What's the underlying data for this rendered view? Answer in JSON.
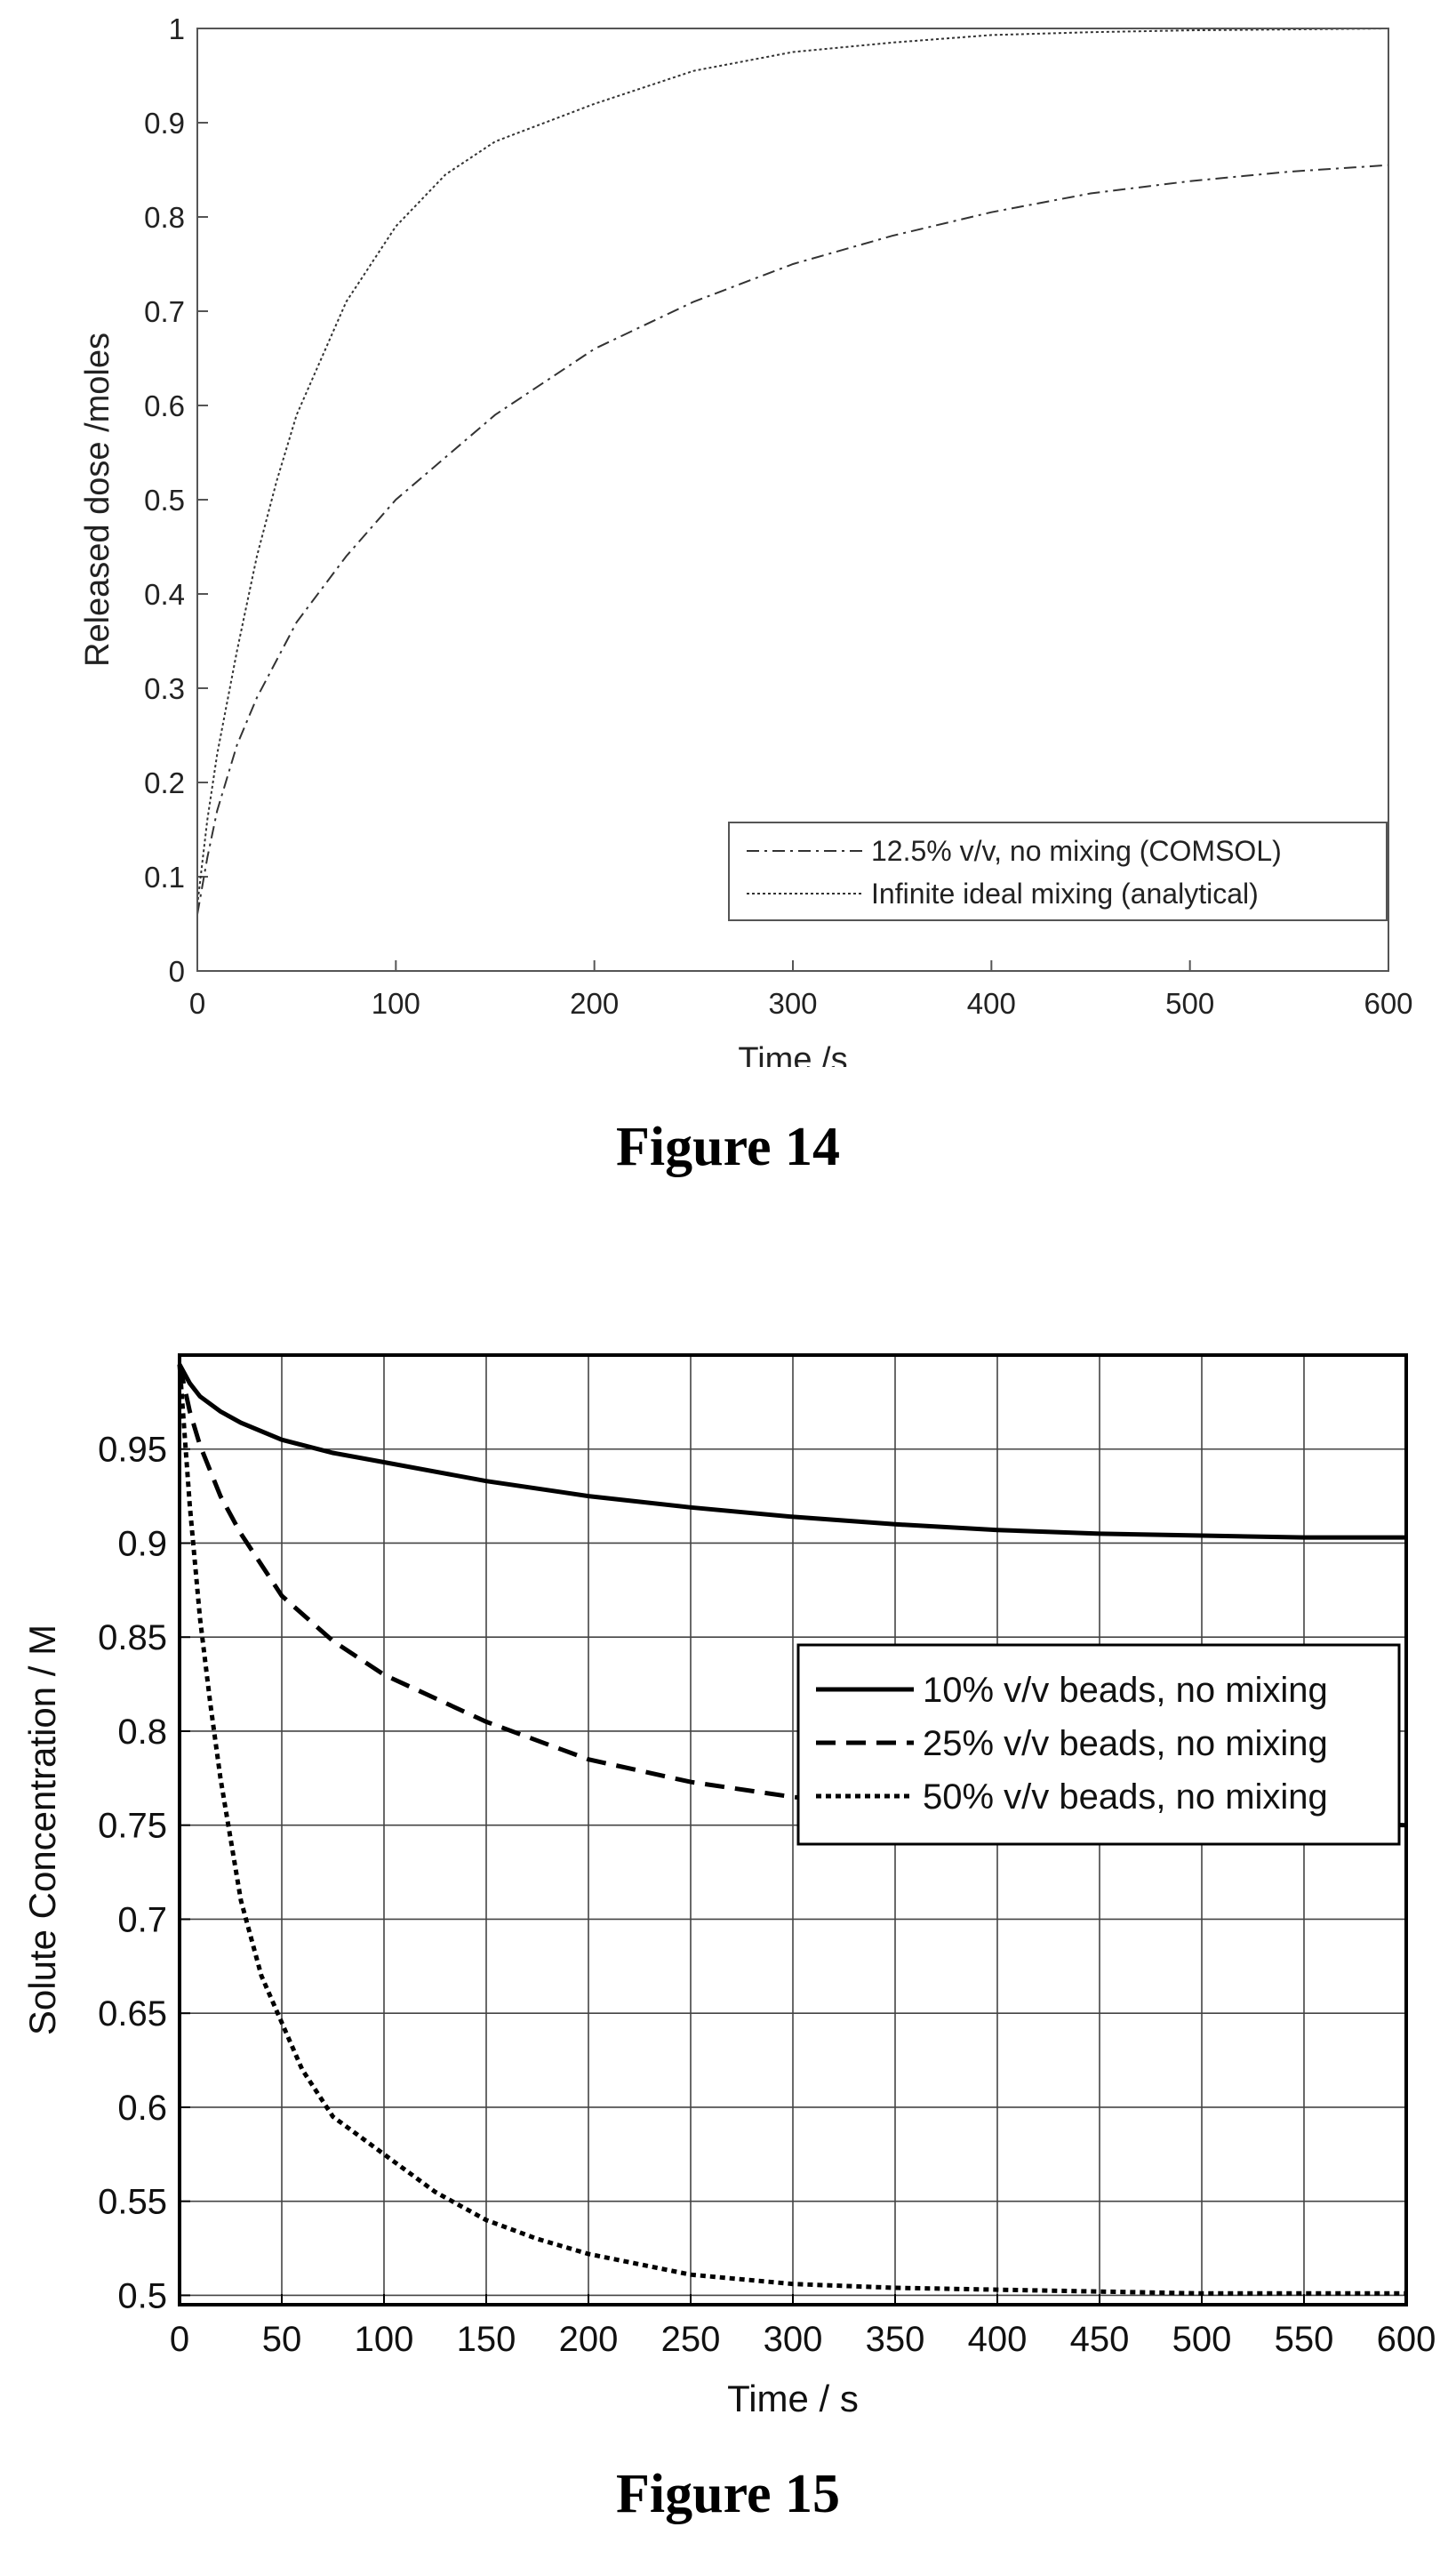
{
  "figure14": {
    "caption": "Figure 14",
    "chart_data": {
      "type": "line",
      "xlabel": "Time /s",
      "ylabel": "Released dose /moles",
      "xlim": [
        0,
        600
      ],
      "ylim": [
        0,
        1
      ],
      "xticks": [
        0,
        100,
        200,
        300,
        400,
        500,
        600
      ],
      "yticks": [
        0,
        0.1,
        0.2,
        0.3,
        0.4,
        0.5,
        0.6,
        0.7,
        0.8,
        0.9,
        1
      ],
      "xtick_labels": [
        "0",
        "100",
        "200",
        "300",
        "400",
        "500",
        "600"
      ],
      "ytick_labels": [
        "0",
        "0.1",
        "0.2",
        "0.3",
        "0.4",
        "0.5",
        "0.6",
        "0.7",
        "0.8",
        "0.9",
        "1"
      ],
      "grid": false,
      "legend": "bottom-right",
      "series": [
        {
          "name": "12.5% v/v, no mixing (COMSOL)",
          "style": "dash-dot",
          "x": [
            0,
            5,
            10,
            20,
            30,
            50,
            75,
            100,
            150,
            200,
            250,
            300,
            350,
            400,
            450,
            500,
            550,
            600
          ],
          "y": [
            0.06,
            0.12,
            0.17,
            0.24,
            0.29,
            0.37,
            0.44,
            0.5,
            0.59,
            0.66,
            0.71,
            0.75,
            0.78,
            0.805,
            0.825,
            0.838,
            0.848,
            0.855
          ]
        },
        {
          "name": "Infinite ideal mixing (analytical)",
          "style": "dotted",
          "x": [
            0,
            5,
            10,
            20,
            30,
            40,
            50,
            75,
            100,
            125,
            150,
            200,
            250,
            300,
            350,
            400,
            450,
            500,
            550,
            600
          ],
          "y": [
            0.07,
            0.16,
            0.23,
            0.34,
            0.44,
            0.52,
            0.59,
            0.71,
            0.79,
            0.845,
            0.88,
            0.92,
            0.955,
            0.975,
            0.985,
            0.993,
            0.996,
            0.998,
            0.999,
            1.0
          ]
        }
      ]
    }
  },
  "figure15": {
    "caption": "Figure 15",
    "chart_data": {
      "type": "line",
      "xlabel": "Time / s",
      "ylabel": "Solute Concentration / M",
      "xlim": [
        0,
        600
      ],
      "ylim": [
        0.495,
        1.0
      ],
      "xticks": [
        0,
        50,
        100,
        150,
        200,
        250,
        300,
        350,
        400,
        450,
        500,
        550,
        600
      ],
      "yticks": [
        0.5,
        0.55,
        0.6,
        0.65,
        0.7,
        0.75,
        0.8,
        0.85,
        0.9,
        0.95
      ],
      "xtick_labels": [
        "0",
        "50",
        "100",
        "150",
        "200",
        "250",
        "300",
        "350",
        "400",
        "450",
        "500",
        "550",
        "600"
      ],
      "ytick_labels": [
        "0.5",
        "0.55",
        "0.6",
        "0.65",
        "0.7",
        "0.75",
        "0.8",
        "0.85",
        "0.9",
        "0.95"
      ],
      "grid": true,
      "legend": "top-right",
      "series": [
        {
          "name": "10% v/v beads, no mixing",
          "style": "solid",
          "x": [
            0,
            5,
            10,
            20,
            30,
            50,
            75,
            100,
            150,
            200,
            250,
            300,
            350,
            400,
            450,
            500,
            550,
            600
          ],
          "y": [
            0.995,
            0.985,
            0.978,
            0.97,
            0.964,
            0.955,
            0.948,
            0.943,
            0.933,
            0.925,
            0.919,
            0.914,
            0.91,
            0.907,
            0.905,
            0.904,
            0.903,
            0.903
          ]
        },
        {
          "name": "25% v/v beads, no mixing",
          "style": "dashed",
          "x": [
            0,
            5,
            10,
            20,
            30,
            50,
            75,
            100,
            150,
            200,
            250,
            300,
            350,
            400,
            450,
            500,
            550,
            600
          ],
          "y": [
            0.995,
            0.97,
            0.952,
            0.925,
            0.905,
            0.872,
            0.848,
            0.83,
            0.805,
            0.785,
            0.773,
            0.765,
            0.76,
            0.756,
            0.754,
            0.752,
            0.751,
            0.75
          ]
        },
        {
          "name": "50% v/v beads, no mixing",
          "style": "dotted",
          "x": [
            0,
            5,
            10,
            15,
            20,
            30,
            40,
            50,
            60,
            75,
            100,
            125,
            150,
            175,
            200,
            250,
            300,
            350,
            400,
            450,
            500,
            550,
            600
          ],
          "y": [
            0.995,
            0.92,
            0.86,
            0.815,
            0.775,
            0.71,
            0.67,
            0.645,
            0.62,
            0.595,
            0.575,
            0.555,
            0.54,
            0.53,
            0.522,
            0.511,
            0.506,
            0.504,
            0.503,
            0.502,
            0.501,
            0.501,
            0.501
          ]
        }
      ]
    }
  }
}
